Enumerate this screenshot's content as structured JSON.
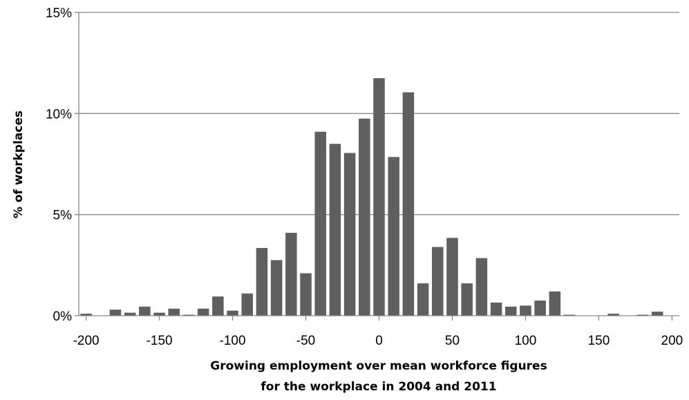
{
  "chart_data": {
    "type": "bar",
    "title": "",
    "xlabel": "Growing employment over mean workforce figures",
    "xlabel_line2": "for the workplace in 2004 and 2011",
    "ylabel": "% of workplaces",
    "xlim": [
      -205,
      205
    ],
    "ylim": [
      0,
      15
    ],
    "x_ticks": [
      -200,
      -150,
      -100,
      -50,
      0,
      50,
      100,
      150,
      200
    ],
    "x_tick_labels": [
      "-200",
      "-150",
      "-100",
      "-50",
      "0",
      "50",
      "100",
      "150",
      "200"
    ],
    "y_ticks": [
      0,
      5,
      10,
      15
    ],
    "y_tick_labels": [
      "0%",
      "5%",
      "10%",
      "15%"
    ],
    "grid": true,
    "legend": "none",
    "bar_color": "#5f5f5f",
    "gridline_color": "#868686",
    "x": [
      -200,
      -190,
      -180,
      -170,
      -160,
      -150,
      -140,
      -130,
      -120,
      -110,
      -100,
      -90,
      -80,
      -70,
      -60,
      -50,
      -40,
      -30,
      -20,
      -10,
      0,
      10,
      20,
      30,
      40,
      50,
      60,
      70,
      80,
      90,
      100,
      110,
      120,
      130,
      140,
      150,
      160,
      170,
      180,
      190
    ],
    "values": [
      0.1,
      0.0,
      0.3,
      0.15,
      0.45,
      0.15,
      0.35,
      0.05,
      0.35,
      0.95,
      0.25,
      1.1,
      3.35,
      2.75,
      4.1,
      2.1,
      9.1,
      8.5,
      8.05,
      9.75,
      11.75,
      7.85,
      11.05,
      1.6,
      3.4,
      3.85,
      1.6,
      2.85,
      0.65,
      0.45,
      0.5,
      0.75,
      1.2,
      0.05,
      0.0,
      0.0,
      0.1,
      0.0,
      0.05,
      0.2
    ]
  }
}
